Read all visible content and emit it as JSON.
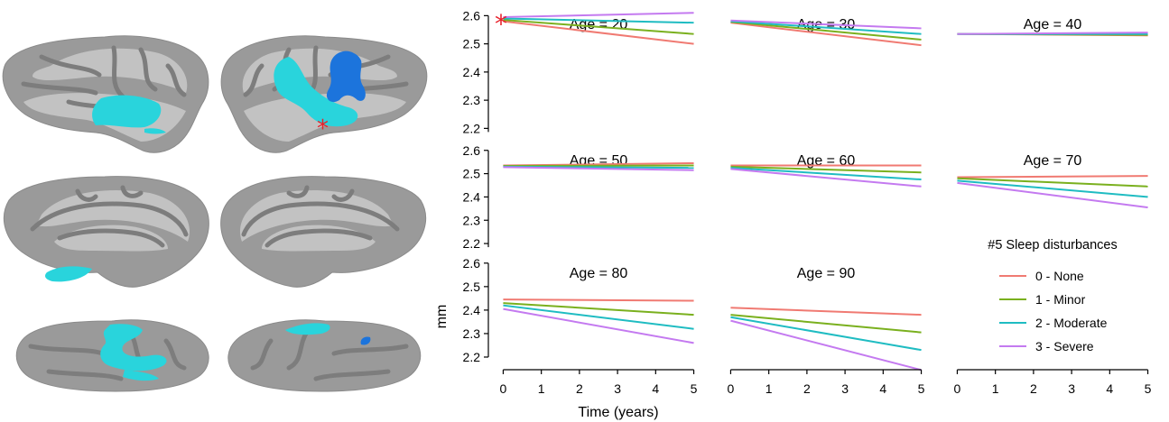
{
  "figure": {
    "marker": "*",
    "highlight_color": "#29d4dc",
    "secondary_color": "#1c74dc",
    "marker_color": "#e8202a"
  },
  "chart_data": {
    "type": "line",
    "xlabel": "Time (years)",
    "ylabel": "mm",
    "x": [
      0,
      5
    ],
    "xticks": [
      0,
      1,
      2,
      3,
      4,
      5
    ],
    "yticks": [
      2.2,
      2.3,
      2.4,
      2.5,
      2.6
    ],
    "xlim": [
      -0.2,
      5.2
    ],
    "ylim": [
      2.15,
      2.63
    ],
    "grid": false,
    "legend": {
      "title": "#5 Sleep disturbances",
      "placement": "bottom-right panel",
      "entries": [
        {
          "label": "0 - None",
          "color": "#f07a72"
        },
        {
          "label": "1 - Minor",
          "color": "#7ab01e"
        },
        {
          "label": "2 - Moderate",
          "color": "#1fbcc2"
        },
        {
          "label": "3 - Severe",
          "color": "#c47af0"
        }
      ]
    },
    "panels": [
      {
        "title": "Age = 20",
        "significant": true,
        "series": [
          {
            "values": [
              2.58,
              2.5
            ]
          },
          {
            "values": [
              2.585,
              2.535
            ]
          },
          {
            "values": [
              2.59,
              2.575
            ]
          },
          {
            "values": [
              2.595,
              2.61
            ]
          }
        ]
      },
      {
        "title": "Age = 30",
        "significant": false,
        "series": [
          {
            "values": [
              2.575,
              2.495
            ]
          },
          {
            "values": [
              2.578,
              2.515
            ]
          },
          {
            "values": [
              2.58,
              2.535
            ]
          },
          {
            "values": [
              2.583,
              2.555
            ]
          }
        ]
      },
      {
        "title": "Age = 40",
        "significant": false,
        "series": [
          {
            "values": [
              2.535,
              2.53
            ]
          },
          {
            "values": [
              2.535,
              2.532
            ]
          },
          {
            "values": [
              2.535,
              2.535
            ]
          },
          {
            "values": [
              2.535,
              2.54
            ]
          }
        ]
      },
      {
        "title": "Age = 50",
        "significant": false,
        "series": [
          {
            "values": [
              2.535,
              2.545
            ]
          },
          {
            "values": [
              2.533,
              2.535
            ]
          },
          {
            "values": [
              2.53,
              2.525
            ]
          },
          {
            "values": [
              2.528,
              2.515
            ]
          }
        ]
      },
      {
        "title": "Age = 60",
        "significant": false,
        "series": [
          {
            "values": [
              2.535,
              2.535
            ]
          },
          {
            "values": [
              2.53,
              2.505
            ]
          },
          {
            "values": [
              2.525,
              2.475
            ]
          },
          {
            "values": [
              2.52,
              2.445
            ]
          }
        ]
      },
      {
        "title": "Age = 70",
        "significant": false,
        "series": [
          {
            "values": [
              2.485,
              2.49
            ]
          },
          {
            "values": [
              2.48,
              2.445
            ]
          },
          {
            "values": [
              2.47,
              2.4
            ]
          },
          {
            "values": [
              2.46,
              2.355
            ]
          }
        ]
      },
      {
        "title": "Age = 80",
        "significant": false,
        "series": [
          {
            "values": [
              2.445,
              2.44
            ]
          },
          {
            "values": [
              2.43,
              2.38
            ]
          },
          {
            "values": [
              2.42,
              2.32
            ]
          },
          {
            "values": [
              2.405,
              2.26
            ]
          }
        ]
      },
      {
        "title": "Age = 90",
        "significant": false,
        "series": [
          {
            "values": [
              2.41,
              2.38
            ]
          },
          {
            "values": [
              2.38,
              2.305
            ]
          },
          {
            "values": [
              2.37,
              2.23
            ]
          },
          {
            "values": [
              2.355,
              2.145
            ]
          }
        ]
      }
    ]
  }
}
